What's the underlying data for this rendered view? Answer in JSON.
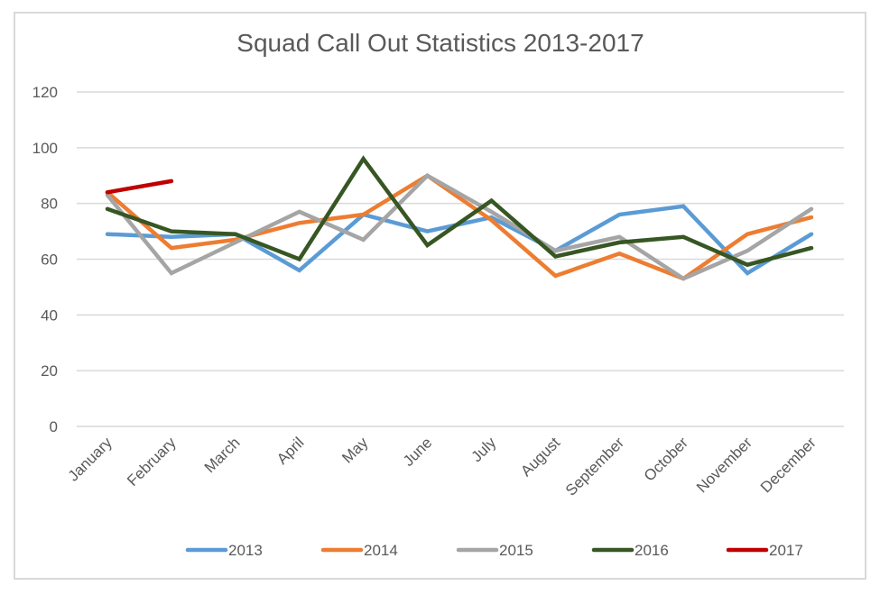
{
  "chart_data": {
    "type": "line",
    "title": "Squad Call Out Statistics 2013-2017",
    "xlabel": "",
    "ylabel": "",
    "ylim": [
      0,
      120
    ],
    "yticks": [
      0,
      20,
      40,
      60,
      80,
      100,
      120
    ],
    "grid": true,
    "legend_position": "bottom",
    "categories": [
      "January",
      "February",
      "March",
      "April",
      "May",
      "June",
      "July",
      "August",
      "September",
      "October",
      "November",
      "December"
    ],
    "series": [
      {
        "name": "2013",
        "color": "#5B9BD5",
        "values": [
          69,
          68,
          69,
          56,
          76,
          70,
          75,
          63,
          76,
          79,
          55,
          69
        ]
      },
      {
        "name": "2014",
        "color": "#ED7D31",
        "values": [
          84,
          64,
          67,
          73,
          76,
          90,
          74,
          54,
          62,
          53,
          69,
          75
        ]
      },
      {
        "name": "2015",
        "color": "#A5A5A5",
        "values": [
          83,
          55,
          66,
          77,
          67,
          90,
          77,
          63,
          68,
          53,
          63,
          78
        ]
      },
      {
        "name": "2016",
        "color": "#375623",
        "values": [
          78,
          70,
          69,
          60,
          96,
          65,
          81,
          61,
          66,
          68,
          58,
          64
        ]
      },
      {
        "name": "2017",
        "color": "#C00000",
        "values": [
          84,
          88,
          null,
          null,
          null,
          null,
          null,
          null,
          null,
          null,
          null,
          null
        ]
      }
    ]
  }
}
